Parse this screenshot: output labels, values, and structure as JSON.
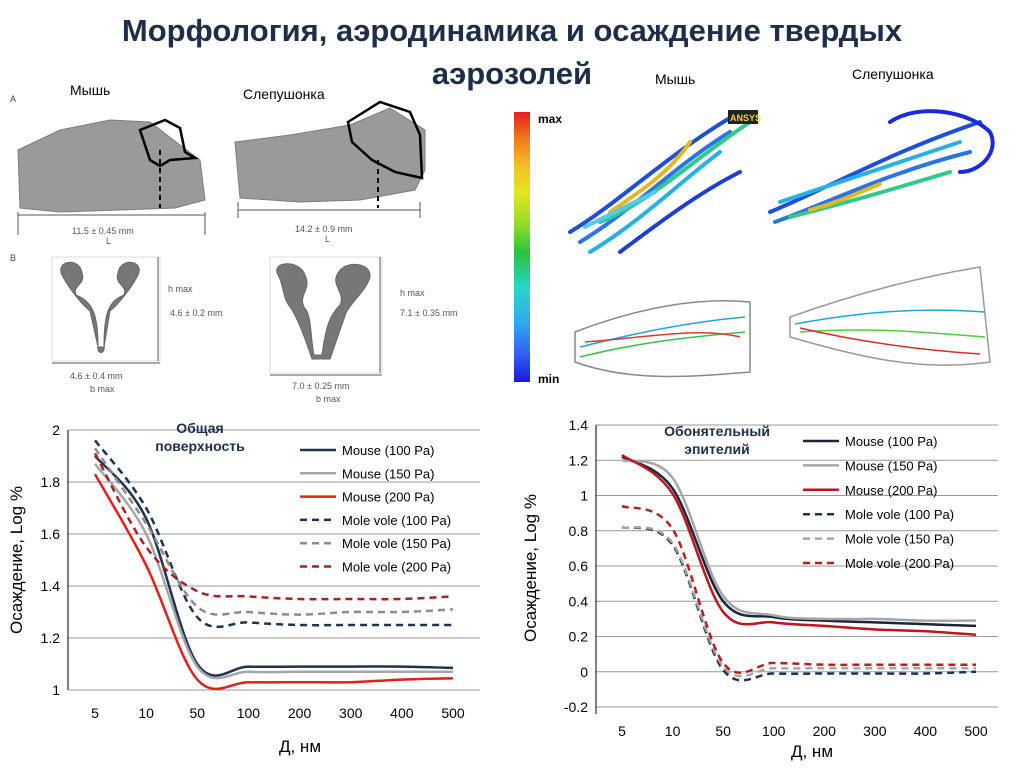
{
  "title": {
    "line1": "Морфология, аэродинамика и осаждение твердых",
    "line2": "аэрозолей"
  },
  "morph": {
    "panel_a": "A",
    "panel_b": "B",
    "mouse_label": "Мышь",
    "vole_label": "Слепушонка",
    "mouse_L": "11.5 ± 0.45 mm",
    "vole_L": "14.2 ± 0.9 mm",
    "L": "L",
    "h_max": "h max",
    "b_max": "b max",
    "mouse_h": "4.6 ± 0.2 mm",
    "vole_h": "7.1 ± 0.35 mm",
    "mouse_b": "4.6 ± 0.4 mm",
    "vole_b": "7.0 ± 0.25 mm"
  },
  "flow": {
    "mouse_label": "Мышь",
    "vole_label": "Слепушонка",
    "max": "max",
    "min": "min",
    "logo": "ANSYS"
  },
  "chart_data": [
    {
      "type": "line",
      "title": "Общая поверхность",
      "xlabel": "Д, нм",
      "ylabel": "Осаждение, Log %",
      "x": [
        5,
        10,
        50,
        100,
        200,
        300,
        400,
        500
      ],
      "xticks": [
        "5",
        "10",
        "50",
        "100",
        "200",
        "300",
        "400",
        "500"
      ],
      "ylim": [
        1,
        2
      ],
      "yticks": [
        "1",
        "1.2",
        "1.4",
        "1.6",
        "1.8",
        "2"
      ],
      "series": [
        {
          "name": "Mouse (100 Pa)",
          "color": "#1f3350",
          "dash": false,
          "values": [
            1.9,
            1.66,
            1.1,
            1.09,
            1.09,
            1.09,
            1.09,
            1.085
          ]
        },
        {
          "name": "Mouse (150 Pa)",
          "color": "#a6a6a6",
          "dash": false,
          "values": [
            1.87,
            1.6,
            1.09,
            1.07,
            1.07,
            1.07,
            1.07,
            1.07
          ]
        },
        {
          "name": "Mouse (200 Pa)",
          "color": "#e0201b",
          "dash": false,
          "values": [
            1.83,
            1.48,
            1.04,
            1.03,
            1.03,
            1.03,
            1.04,
            1.045
          ]
        },
        {
          "name": "Mole vole (100 Pa)",
          "color": "#1f3350",
          "dash": true,
          "values": [
            1.96,
            1.7,
            1.28,
            1.26,
            1.25,
            1.25,
            1.25,
            1.25
          ]
        },
        {
          "name": "Mole vole (150 Pa)",
          "color": "#8c8c8c",
          "dash": true,
          "values": [
            1.93,
            1.64,
            1.32,
            1.3,
            1.29,
            1.3,
            1.3,
            1.31
          ]
        },
        {
          "name": "Mole vole (200 Pa)",
          "color": "#a82222",
          "dash": true,
          "values": [
            1.91,
            1.55,
            1.38,
            1.36,
            1.35,
            1.35,
            1.35,
            1.36
          ]
        }
      ]
    },
    {
      "type": "line",
      "title": "Обонятельный эпителий",
      "xlabel": "Д, нм",
      "ylabel": "Осаждение, Log %",
      "x": [
        5,
        10,
        50,
        100,
        200,
        300,
        400,
        500
      ],
      "xticks": [
        "5",
        "10",
        "50",
        "100",
        "200",
        "300",
        "400",
        "500"
      ],
      "ylim": [
        -0.2,
        1.4
      ],
      "yticks": [
        "-0.2",
        "0",
        "0.2",
        "0.4",
        "0.6",
        "0.8",
        "1",
        "1.2",
        "1.4"
      ],
      "series": [
        {
          "name": "Mouse (100 Pa)",
          "color": "#1a2538",
          "dash": false,
          "values": [
            1.22,
            1.04,
            0.4,
            0.31,
            0.29,
            0.28,
            0.27,
            0.26
          ]
        },
        {
          "name": "Mouse (150 Pa)",
          "color": "#a6a6a6",
          "dash": false,
          "values": [
            1.2,
            1.1,
            0.43,
            0.32,
            0.3,
            0.3,
            0.29,
            0.29
          ]
        },
        {
          "name": "Mouse (200 Pa)",
          "color": "#c0151a",
          "dash": false,
          "values": [
            1.23,
            1.01,
            0.34,
            0.28,
            0.26,
            0.24,
            0.23,
            0.21
          ]
        },
        {
          "name": "Mole vole (100 Pa)",
          "color": "#1f3350",
          "dash": true,
          "values": [
            0.82,
            0.72,
            0.01,
            -0.01,
            -0.01,
            -0.01,
            -0.01,
            0.0
          ]
        },
        {
          "name": "Mole vole (150 Pa)",
          "color": "#a6a6a6",
          "dash": true,
          "values": [
            0.82,
            0.73,
            0.03,
            0.02,
            0.02,
            0.02,
            0.02,
            0.02
          ]
        },
        {
          "name": "Mole vole (200 Pa)",
          "color": "#b81e1e",
          "dash": true,
          "values": [
            0.94,
            0.81,
            0.05,
            0.05,
            0.04,
            0.04,
            0.04,
            0.04
          ]
        }
      ]
    }
  ]
}
